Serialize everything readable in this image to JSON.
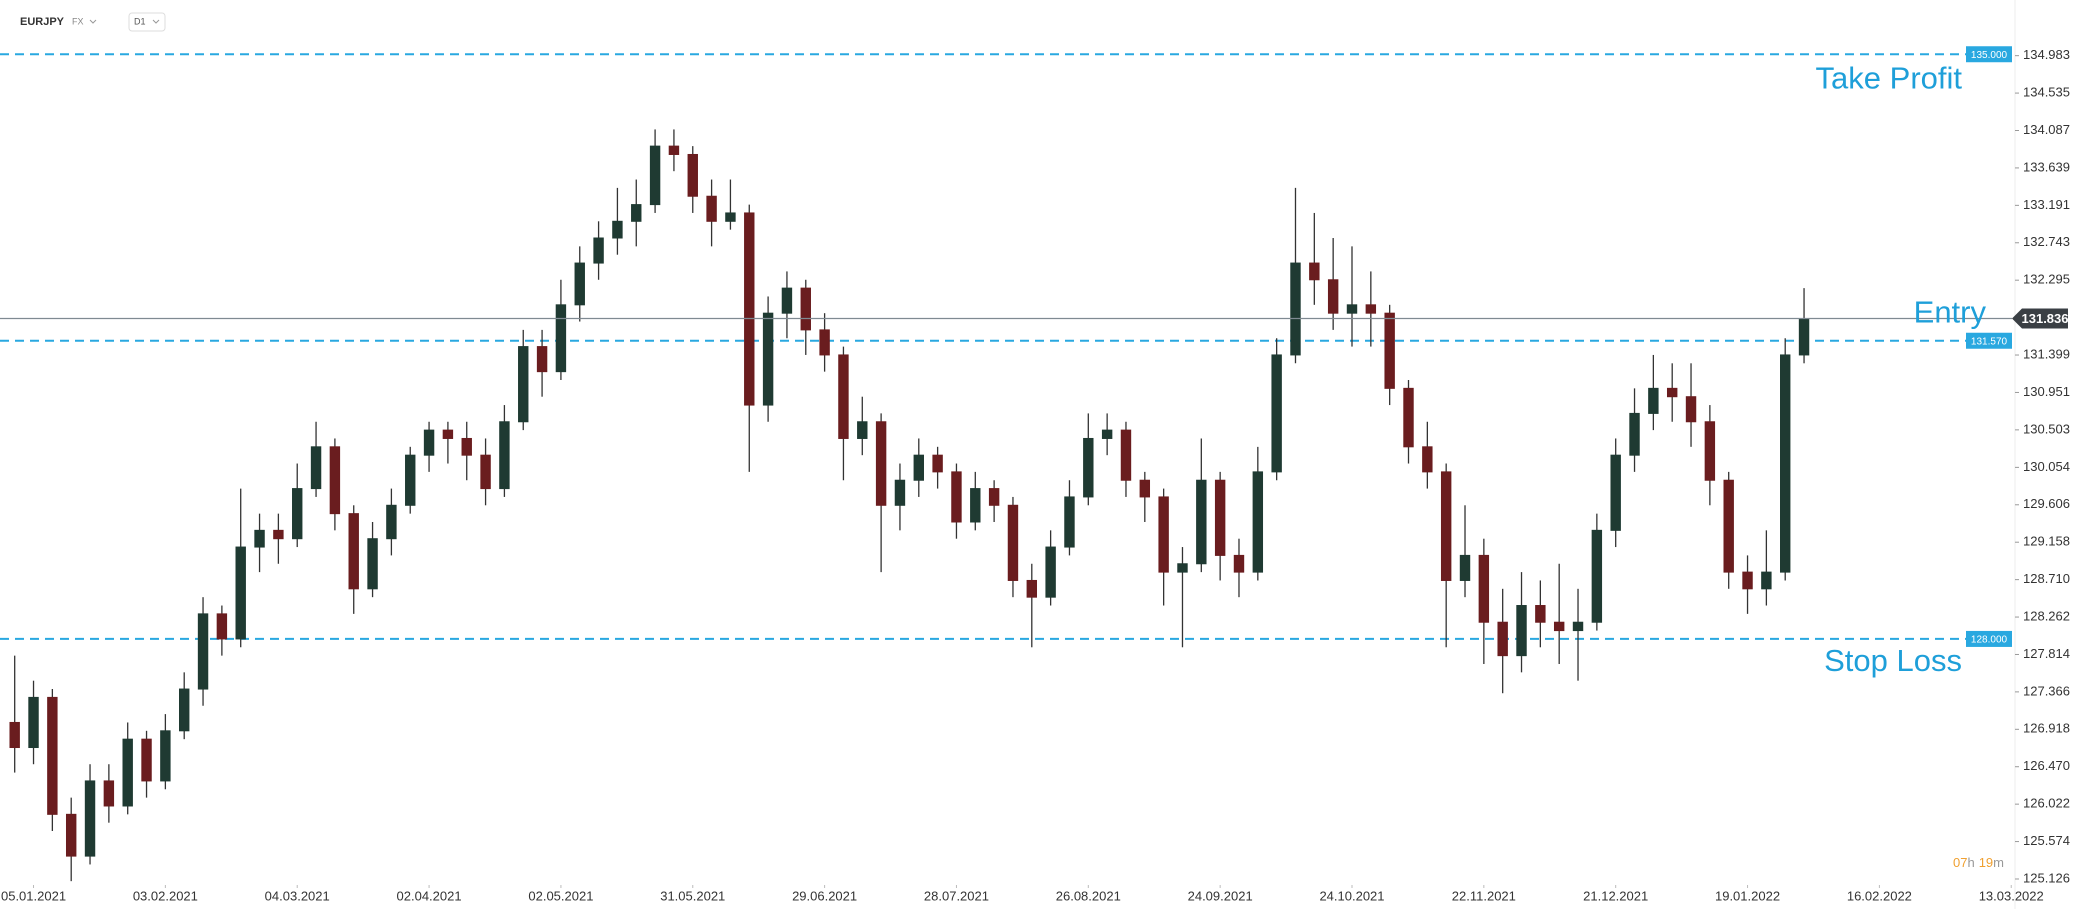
{
  "header": {
    "symbol": "EURJPY",
    "market": "FX",
    "interval": "D1"
  },
  "chart_data": {
    "type": "candlestick",
    "open": [
      127.0,
      126.7,
      127.3,
      125.9,
      125.4,
      126.3,
      126.0,
      126.8,
      126.3,
      126.9,
      127.4,
      128.3,
      128.0,
      129.1,
      129.3,
      129.2,
      129.8,
      130.3,
      129.5,
      128.6,
      129.2,
      129.6,
      130.2,
      130.5,
      130.4,
      130.2,
      129.8,
      130.6,
      131.5,
      131.2,
      132.0,
      132.5,
      132.8,
      133.0,
      133.2,
      133.9,
      133.8,
      133.3,
      133.0,
      133.1,
      130.8,
      131.9,
      132.2,
      131.7,
      131.4,
      130.4,
      130.6,
      129.6,
      129.9,
      130.2,
      130.0,
      129.4,
      129.8,
      129.6,
      128.7,
      128.5,
      129.1,
      129.7,
      130.4,
      130.5,
      129.9,
      129.7,
      128.8,
      128.9,
      129.9,
      129.0,
      128.8,
      130.0,
      131.4,
      132.5,
      132.3,
      131.9,
      132.0,
      131.9,
      131.0,
      130.3,
      130.0,
      128.7,
      129.0,
      128.2,
      127.8,
      128.4,
      128.2,
      128.1,
      128.2,
      129.3,
      130.2,
      130.7,
      131.0,
      130.9,
      130.6,
      129.9,
      128.8,
      128.6,
      128.8,
      131.4
    ],
    "high": [
      127.8,
      127.5,
      127.4,
      126.1,
      126.5,
      126.5,
      127.0,
      126.9,
      127.1,
      127.6,
      128.5,
      128.4,
      129.8,
      129.5,
      129.5,
      130.1,
      130.6,
      130.4,
      129.6,
      129.4,
      129.8,
      130.3,
      130.6,
      130.6,
      130.6,
      130.4,
      130.8,
      131.7,
      131.7,
      132.3,
      132.7,
      133.0,
      133.4,
      133.5,
      134.1,
      134.1,
      133.9,
      133.5,
      133.5,
      133.2,
      132.1,
      132.4,
      132.3,
      131.9,
      131.5,
      130.9,
      130.7,
      130.1,
      130.4,
      130.3,
      130.1,
      130.0,
      129.9,
      129.7,
      128.9,
      129.3,
      129.9,
      130.7,
      130.7,
      130.6,
      130.0,
      129.8,
      129.1,
      130.4,
      130.0,
      129.2,
      130.3,
      131.6,
      133.4,
      133.1,
      132.8,
      132.7,
      132.4,
      132.0,
      131.1,
      130.6,
      130.1,
      129.6,
      129.2,
      128.6,
      128.8,
      128.7,
      128.9,
      128.6,
      129.5,
      130.4,
      131.0,
      131.4,
      131.3,
      131.3,
      130.8,
      130.0,
      129.0,
      129.3,
      131.6,
      132.2
    ],
    "low": [
      126.4,
      126.5,
      125.7,
      125.1,
      125.3,
      125.8,
      125.9,
      126.1,
      126.2,
      126.8,
      127.2,
      127.8,
      127.9,
      128.8,
      128.9,
      129.1,
      129.7,
      129.3,
      128.3,
      128.5,
      129.0,
      129.5,
      130.0,
      130.1,
      129.9,
      129.6,
      129.7,
      130.5,
      130.9,
      131.1,
      131.8,
      132.3,
      132.6,
      132.7,
      133.1,
      133.6,
      133.1,
      132.7,
      132.9,
      130.0,
      130.6,
      131.6,
      131.4,
      131.2,
      129.9,
      130.2,
      128.8,
      129.3,
      129.7,
      129.8,
      129.2,
      129.3,
      129.4,
      128.5,
      127.9,
      128.4,
      129.0,
      129.6,
      130.2,
      129.7,
      129.4,
      128.4,
      127.9,
      128.8,
      128.7,
      128.5,
      128.7,
      129.9,
      131.3,
      132.0,
      131.7,
      131.5,
      131.5,
      130.8,
      130.1,
      129.8,
      127.9,
      128.5,
      127.7,
      127.35,
      127.6,
      127.9,
      127.7,
      127.5,
      128.1,
      129.1,
      130.0,
      130.5,
      130.6,
      130.3,
      129.6,
      128.6,
      128.3,
      128.4,
      128.7,
      131.3
    ],
    "close": [
      126.7,
      127.3,
      125.9,
      125.4,
      126.3,
      126.0,
      126.8,
      126.3,
      126.9,
      127.4,
      128.3,
      128.0,
      129.1,
      129.3,
      129.2,
      129.8,
      130.3,
      129.5,
      128.6,
      129.2,
      129.6,
      130.2,
      130.5,
      130.4,
      130.2,
      129.8,
      130.6,
      131.5,
      131.2,
      132.0,
      132.5,
      132.8,
      133.0,
      133.2,
      133.9,
      133.8,
      133.3,
      133.0,
      133.1,
      130.8,
      131.9,
      132.2,
      131.7,
      131.4,
      130.4,
      130.6,
      129.6,
      129.9,
      130.2,
      130.0,
      129.4,
      129.8,
      129.6,
      128.7,
      128.5,
      129.1,
      129.7,
      130.4,
      130.5,
      129.9,
      129.7,
      128.8,
      128.9,
      129.9,
      129.0,
      128.8,
      130.0,
      131.4,
      132.5,
      132.3,
      131.9,
      132.0,
      131.9,
      131.0,
      130.3,
      130.0,
      128.7,
      129.0,
      128.2,
      127.8,
      128.4,
      128.2,
      128.1,
      128.2,
      129.3,
      130.2,
      130.7,
      131.0,
      130.9,
      130.6,
      129.9,
      128.8,
      128.6,
      128.8,
      131.4,
      131.836
    ],
    "colors": {
      "up": "#1f3a32",
      "down": "#6a1d1f",
      "level": "#29a8e0",
      "last": "#7f8a92"
    },
    "xlim": [
      -0.78,
      106.2
    ],
    "xticks": [
      {
        "value": 1,
        "label": "05.01.2021"
      },
      {
        "value": 8,
        "label": "03.02.2021"
      },
      {
        "value": 15,
        "label": "04.03.2021"
      },
      {
        "value": 22,
        "label": "02.04.2021"
      },
      {
        "value": 29,
        "label": "02.05.2021"
      },
      {
        "value": 36,
        "label": "31.05.2021"
      },
      {
        "value": 43,
        "label": "29.06.2021"
      },
      {
        "value": 50,
        "label": "28.07.2021"
      },
      {
        "value": 57,
        "label": "26.08.2021"
      },
      {
        "value": 64,
        "label": "24.09.2021"
      },
      {
        "value": 71,
        "label": "24.10.2021"
      },
      {
        "value": 78,
        "label": "22.11.2021"
      },
      {
        "value": 85,
        "label": "21.12.2021"
      },
      {
        "value": 92,
        "label": "19.01.2022"
      },
      {
        "value": 99,
        "label": "16.02.2022"
      },
      {
        "value": 106,
        "label": "13.03.2022"
      }
    ],
    "ylim": [
      125.054,
      135.41
    ],
    "yticks": [
      134.983,
      134.535,
      134.087,
      133.639,
      133.191,
      132.743,
      132.295,
      131.399,
      130.951,
      130.503,
      130.054,
      129.606,
      129.158,
      {
        "value": 128.71,
        "label": "128.710"
      },
      128.262,
      127.814,
      127.366,
      126.918,
      {
        "value": 126.47,
        "label": "126.470"
      },
      126.022,
      125.574,
      125.126
    ],
    "levels": [
      {
        "value": 135,
        "label": "135.000",
        "annotation": "Take Profit"
      },
      {
        "value": 131.57,
        "label": "131.570"
      },
      {
        "value": 128,
        "label": "128.000",
        "annotation": "Stop Loss"
      }
    ],
    "last_price": {
      "value": 131.836,
      "annotation": "Entry"
    },
    "timer": [
      "07",
      "h",
      "19",
      "m"
    ]
  }
}
